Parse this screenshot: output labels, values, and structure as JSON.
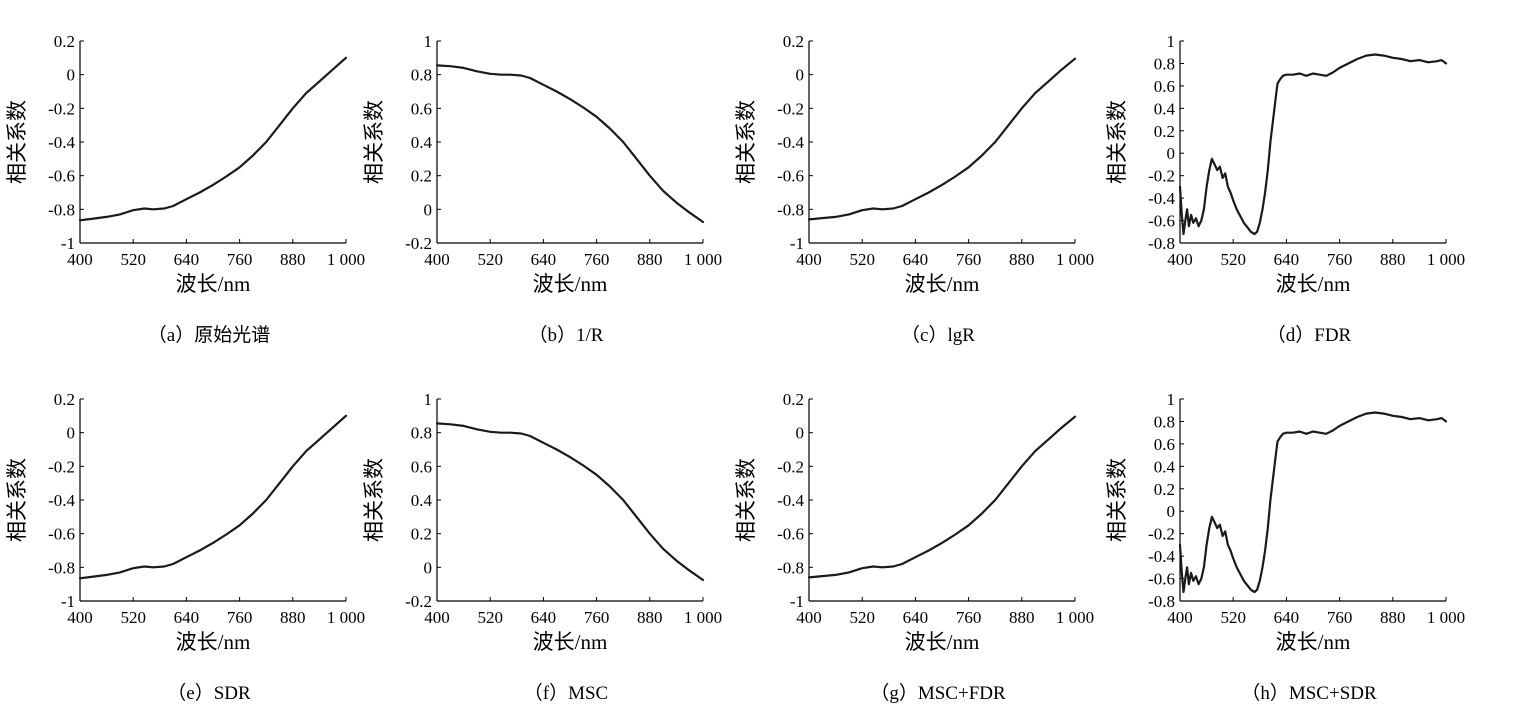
{
  "figure": {
    "charts": [
      "a",
      "b",
      "c",
      "d",
      "e",
      "f",
      "g",
      "h"
    ]
  },
  "chart_data": [
    {
      "id": "a",
      "type": "line",
      "caption_id": "（a）",
      "caption_text": "原始光谱",
      "xlabel": "波长/nm",
      "ylabel": "相关系数",
      "xlim": [
        400,
        1000
      ],
      "ylim": [
        -1,
        0.2
      ],
      "xticks": [
        400,
        520,
        640,
        760,
        880,
        1000
      ],
      "xtick_labels": [
        "400",
        "520",
        "640",
        "760",
        "880",
        "1 000"
      ],
      "yticks": [
        -1,
        -0.8,
        -0.6,
        -0.4,
        -0.2,
        0,
        0.2
      ],
      "ytick_labels": [
        "-1",
        "-0.8",
        "-0.6",
        "-0.4",
        "-0.2",
        "0",
        "0.2"
      ],
      "series": [
        {
          "x": [
            400,
            430,
            460,
            490,
            520,
            545,
            565,
            590,
            610,
            640,
            670,
            700,
            730,
            760,
            790,
            820,
            850,
            880,
            910,
            940,
            970,
            1000
          ],
          "y": [
            -0.865,
            -0.855,
            -0.845,
            -0.83,
            -0.805,
            -0.795,
            -0.8,
            -0.795,
            -0.78,
            -0.74,
            -0.7,
            -0.655,
            -0.605,
            -0.55,
            -0.48,
            -0.4,
            -0.3,
            -0.2,
            -0.11,
            -0.04,
            0.03,
            0.1
          ]
        }
      ]
    },
    {
      "id": "b",
      "type": "line",
      "caption_id": "（b）",
      "caption_text": "1/R",
      "xlabel": "波长/nm",
      "ylabel": "相关系数",
      "xlim": [
        400,
        1000
      ],
      "ylim": [
        -0.2,
        1
      ],
      "xticks": [
        400,
        520,
        640,
        760,
        880,
        1000
      ],
      "xtick_labels": [
        "400",
        "520",
        "640",
        "760",
        "880",
        "1 000"
      ],
      "yticks": [
        -0.2,
        0,
        0.2,
        0.4,
        0.6,
        0.8,
        1
      ],
      "ytick_labels": [
        "-0.2",
        "0",
        "0.2",
        "0.4",
        "0.6",
        "0.8",
        "1"
      ],
      "series": [
        {
          "x": [
            400,
            430,
            460,
            490,
            520,
            545,
            565,
            590,
            610,
            640,
            670,
            700,
            730,
            760,
            790,
            820,
            850,
            880,
            910,
            940,
            970,
            1000
          ],
          "y": [
            0.855,
            0.85,
            0.84,
            0.82,
            0.805,
            0.8,
            0.8,
            0.795,
            0.78,
            0.74,
            0.7,
            0.655,
            0.605,
            0.55,
            0.48,
            0.4,
            0.3,
            0.2,
            0.11,
            0.04,
            -0.02,
            -0.075
          ]
        }
      ]
    },
    {
      "id": "c",
      "type": "line",
      "caption_id": "（c）",
      "caption_text": "lgR",
      "xlabel": "波长/nm",
      "ylabel": "相关系数",
      "xlim": [
        400,
        1000
      ],
      "ylim": [
        -1,
        0.2
      ],
      "xticks": [
        400,
        520,
        640,
        760,
        880,
        1000
      ],
      "xtick_labels": [
        "400",
        "520",
        "640",
        "760",
        "880",
        "1 000"
      ],
      "yticks": [
        -1,
        -0.8,
        -0.6,
        -0.4,
        -0.2,
        0,
        0.2
      ],
      "ytick_labels": [
        "-1",
        "-0.8",
        "-0.6",
        "-0.4",
        "-0.2",
        "0",
        "0.2"
      ],
      "series": [
        {
          "x": [
            400,
            430,
            460,
            490,
            520,
            545,
            565,
            590,
            610,
            640,
            670,
            700,
            730,
            760,
            790,
            820,
            850,
            880,
            910,
            940,
            970,
            1000
          ],
          "y": [
            -0.86,
            -0.852,
            -0.845,
            -0.83,
            -0.805,
            -0.795,
            -0.8,
            -0.795,
            -0.78,
            -0.74,
            -0.7,
            -0.655,
            -0.605,
            -0.55,
            -0.48,
            -0.4,
            -0.3,
            -0.2,
            -0.11,
            -0.04,
            0.03,
            0.095
          ]
        }
      ]
    },
    {
      "id": "d",
      "type": "line",
      "caption_id": "（d）",
      "caption_text": "FDR",
      "xlabel": "波长/nm",
      "ylabel": "相关系数",
      "xlim": [
        400,
        1000
      ],
      "ylim": [
        -0.8,
        1
      ],
      "xticks": [
        400,
        520,
        640,
        760,
        880,
        1000
      ],
      "xtick_labels": [
        "400",
        "520",
        "640",
        "760",
        "880",
        "1 000"
      ],
      "yticks": [
        -0.8,
        -0.6,
        -0.4,
        -0.2,
        0,
        0.2,
        0.4,
        0.6,
        0.8,
        1
      ],
      "ytick_labels": [
        "-0.8",
        "-0.6",
        "-0.4",
        "-0.2",
        "0",
        "0.2",
        "0.4",
        "0.6",
        "0.8",
        "1"
      ],
      "series": [
        {
          "x": [
            400,
            404,
            408,
            412,
            416,
            420,
            425,
            430,
            436,
            442,
            448,
            454,
            460,
            466,
            472,
            478,
            484,
            490,
            496,
            502,
            508,
            514,
            520,
            528,
            536,
            544,
            552,
            560,
            568,
            574,
            580,
            586,
            592,
            598,
            604,
            610,
            616,
            620,
            626,
            632,
            640,
            655,
            670,
            685,
            700,
            715,
            730,
            745,
            760,
            780,
            800,
            820,
            840,
            860,
            880,
            900,
            920,
            940,
            960,
            980,
            990,
            1000
          ],
          "y": [
            -0.3,
            -0.55,
            -0.72,
            -0.6,
            -0.5,
            -0.65,
            -0.55,
            -0.62,
            -0.58,
            -0.65,
            -0.6,
            -0.5,
            -0.3,
            -0.15,
            -0.05,
            -0.1,
            -0.15,
            -0.12,
            -0.22,
            -0.18,
            -0.3,
            -0.35,
            -0.42,
            -0.5,
            -0.56,
            -0.62,
            -0.66,
            -0.7,
            -0.72,
            -0.7,
            -0.62,
            -0.5,
            -0.35,
            -0.15,
            0.1,
            0.3,
            0.5,
            0.62,
            0.66,
            0.69,
            0.7,
            0.7,
            0.71,
            0.69,
            0.71,
            0.7,
            0.69,
            0.72,
            0.76,
            0.8,
            0.84,
            0.87,
            0.88,
            0.87,
            0.85,
            0.84,
            0.82,
            0.83,
            0.81,
            0.82,
            0.83,
            0.8
          ]
        }
      ]
    },
    {
      "id": "e",
      "type": "line",
      "caption_id": "（e）",
      "caption_text": "SDR",
      "xlabel": "波长/nm",
      "ylabel": "相关系数",
      "xlim": [
        400,
        1000
      ],
      "ylim": [
        -1,
        0.2
      ],
      "xticks": [
        400,
        520,
        640,
        760,
        880,
        1000
      ],
      "xtick_labels": [
        "400",
        "520",
        "640",
        "760",
        "880",
        "1 000"
      ],
      "yticks": [
        -1,
        -0.8,
        -0.6,
        -0.4,
        -0.2,
        0,
        0.2
      ],
      "ytick_labels": [
        "-1",
        "-0.8",
        "-0.6",
        "-0.4",
        "-0.2",
        "0",
        "0.2"
      ],
      "series": [
        {
          "x": [
            400,
            430,
            460,
            490,
            520,
            545,
            565,
            590,
            610,
            640,
            670,
            700,
            730,
            760,
            790,
            820,
            850,
            880,
            910,
            940,
            970,
            1000
          ],
          "y": [
            -0.865,
            -0.855,
            -0.845,
            -0.83,
            -0.805,
            -0.795,
            -0.8,
            -0.795,
            -0.78,
            -0.74,
            -0.7,
            -0.655,
            -0.605,
            -0.55,
            -0.48,
            -0.4,
            -0.3,
            -0.2,
            -0.11,
            -0.04,
            0.03,
            0.1
          ]
        }
      ]
    },
    {
      "id": "f",
      "type": "line",
      "caption_id": "（f）",
      "caption_text": "MSC",
      "xlabel": "波长/nm",
      "ylabel": "相关系数",
      "xlim": [
        400,
        1000
      ],
      "ylim": [
        -0.2,
        1
      ],
      "xticks": [
        400,
        520,
        640,
        760,
        880,
        1000
      ],
      "xtick_labels": [
        "400",
        "520",
        "640",
        "760",
        "880",
        "1 000"
      ],
      "yticks": [
        -0.2,
        0,
        0.2,
        0.4,
        0.6,
        0.8,
        1
      ],
      "ytick_labels": [
        "-0.2",
        "0",
        "0.2",
        "0.4",
        "0.6",
        "0.8",
        "1"
      ],
      "series": [
        {
          "x": [
            400,
            430,
            460,
            490,
            520,
            545,
            565,
            590,
            610,
            640,
            670,
            700,
            730,
            760,
            790,
            820,
            850,
            880,
            910,
            940,
            970,
            1000
          ],
          "y": [
            0.855,
            0.85,
            0.84,
            0.82,
            0.805,
            0.8,
            0.8,
            0.795,
            0.78,
            0.74,
            0.7,
            0.655,
            0.605,
            0.55,
            0.48,
            0.4,
            0.3,
            0.2,
            0.11,
            0.04,
            -0.02,
            -0.075
          ]
        }
      ]
    },
    {
      "id": "g",
      "type": "line",
      "caption_id": "（g）",
      "caption_text": "MSC+FDR",
      "xlabel": "波长/nm",
      "ylabel": "相关系数",
      "xlim": [
        400,
        1000
      ],
      "ylim": [
        -1,
        0.2
      ],
      "xticks": [
        400,
        520,
        640,
        760,
        880,
        1000
      ],
      "xtick_labels": [
        "400",
        "520",
        "640",
        "760",
        "880",
        "1 000"
      ],
      "yticks": [
        -1,
        -0.8,
        -0.6,
        -0.4,
        -0.2,
        0,
        0.2
      ],
      "ytick_labels": [
        "-1",
        "-0.8",
        "-0.6",
        "-0.4",
        "-0.2",
        "0",
        "0.2"
      ],
      "series": [
        {
          "x": [
            400,
            430,
            460,
            490,
            520,
            545,
            565,
            590,
            610,
            640,
            670,
            700,
            730,
            760,
            790,
            820,
            850,
            880,
            910,
            940,
            970,
            1000
          ],
          "y": [
            -0.86,
            -0.852,
            -0.845,
            -0.83,
            -0.805,
            -0.795,
            -0.8,
            -0.795,
            -0.78,
            -0.74,
            -0.7,
            -0.655,
            -0.605,
            -0.55,
            -0.48,
            -0.4,
            -0.3,
            -0.2,
            -0.11,
            -0.04,
            0.03,
            0.095
          ]
        }
      ]
    },
    {
      "id": "h",
      "type": "line",
      "caption_id": "（h）",
      "caption_text": "MSC+SDR",
      "xlabel": "波长/nm",
      "ylabel": "相关系数",
      "xlim": [
        400,
        1000
      ],
      "ylim": [
        -0.8,
        1
      ],
      "xticks": [
        400,
        520,
        640,
        760,
        880,
        1000
      ],
      "xtick_labels": [
        "400",
        "520",
        "640",
        "760",
        "880",
        "1 000"
      ],
      "yticks": [
        -0.8,
        -0.6,
        -0.4,
        -0.2,
        0,
        0.2,
        0.4,
        0.6,
        0.8,
        1
      ],
      "ytick_labels": [
        "-0.8",
        "-0.6",
        "-0.4",
        "-0.2",
        "0",
        "0.2",
        "0.4",
        "0.6",
        "0.8",
        "1"
      ],
      "series": [
        {
          "x": [
            400,
            404,
            408,
            412,
            416,
            420,
            425,
            430,
            436,
            442,
            448,
            454,
            460,
            466,
            472,
            478,
            484,
            490,
            496,
            502,
            508,
            514,
            520,
            528,
            536,
            544,
            552,
            560,
            568,
            574,
            580,
            586,
            592,
            598,
            604,
            610,
            616,
            620,
            626,
            632,
            640,
            655,
            670,
            685,
            700,
            715,
            730,
            745,
            760,
            780,
            800,
            820,
            840,
            860,
            880,
            900,
            920,
            940,
            960,
            980,
            990,
            1000
          ],
          "y": [
            -0.3,
            -0.55,
            -0.72,
            -0.6,
            -0.5,
            -0.65,
            -0.55,
            -0.62,
            -0.58,
            -0.65,
            -0.6,
            -0.5,
            -0.3,
            -0.15,
            -0.05,
            -0.1,
            -0.15,
            -0.12,
            -0.22,
            -0.18,
            -0.3,
            -0.35,
            -0.42,
            -0.5,
            -0.56,
            -0.62,
            -0.66,
            -0.7,
            -0.72,
            -0.7,
            -0.62,
            -0.5,
            -0.35,
            -0.15,
            0.1,
            0.3,
            0.5,
            0.62,
            0.66,
            0.69,
            0.7,
            0.7,
            0.71,
            0.69,
            0.71,
            0.7,
            0.69,
            0.72,
            0.76,
            0.8,
            0.84,
            0.87,
            0.88,
            0.87,
            0.85,
            0.84,
            0.82,
            0.83,
            0.81,
            0.82,
            0.83,
            0.8
          ]
        }
      ]
    }
  ]
}
